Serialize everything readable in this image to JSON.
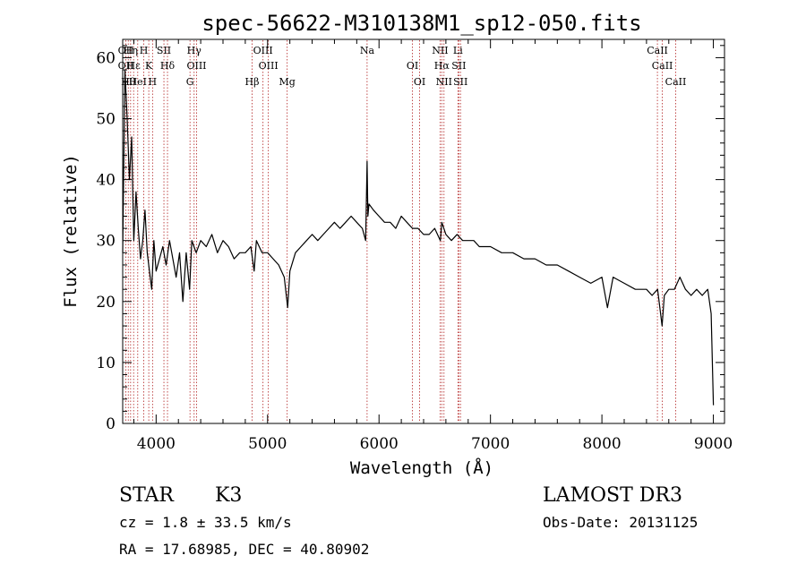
{
  "chart_data": {
    "type": "line",
    "title": "spec-56622-M310138M1_sp12-050.fits",
    "xlabel": "Wavelength (Å)",
    "ylabel": "Flux (relative)",
    "xlim": [
      3700,
      9100
    ],
    "ylim": [
      0,
      63
    ],
    "xticks": [
      4000,
      5000,
      6000,
      7000,
      8000,
      9000
    ],
    "yticks": [
      0,
      10,
      20,
      30,
      40,
      50,
      60
    ],
    "line_color": "#000000",
    "marker_color": "#b22222",
    "series": [
      {
        "name": "flux",
        "x": [
          3700,
          3720,
          3740,
          3760,
          3780,
          3800,
          3820,
          3840,
          3860,
          3880,
          3900,
          3920,
          3940,
          3960,
          3980,
          4000,
          4030,
          4060,
          4090,
          4120,
          4150,
          4180,
          4210,
          4240,
          4270,
          4300,
          4320,
          4340,
          4360,
          4400,
          4450,
          4500,
          4550,
          4600,
          4650,
          4700,
          4750,
          4800,
          4850,
          4880,
          4900,
          4950,
          5000,
          5050,
          5100,
          5150,
          5180,
          5200,
          5250,
          5300,
          5350,
          5400,
          5450,
          5500,
          5550,
          5600,
          5650,
          5700,
          5750,
          5800,
          5850,
          5880,
          5893,
          5900,
          5910,
          5950,
          6000,
          6050,
          6100,
          6150,
          6200,
          6250,
          6300,
          6350,
          6400,
          6450,
          6500,
          6550,
          6563,
          6600,
          6650,
          6700,
          6750,
          6800,
          6850,
          6900,
          6950,
          7000,
          7100,
          7200,
          7300,
          7400,
          7500,
          7600,
          7700,
          7800,
          7900,
          8000,
          8050,
          8100,
          8200,
          8300,
          8400,
          8450,
          8500,
          8540,
          8560,
          8600,
          8650,
          8700,
          8750,
          8800,
          8850,
          8900,
          8950,
          8980,
          9000
        ],
        "y": [
          28,
          58,
          50,
          40,
          47,
          30,
          38,
          32,
          27,
          30,
          35,
          28,
          25,
          22,
          30,
          25,
          27,
          29,
          26,
          30,
          27,
          24,
          28,
          20,
          28,
          22,
          30,
          29,
          28,
          30,
          29,
          31,
          28,
          30,
          29,
          27,
          28,
          28,
          29,
          25,
          30,
          28,
          28,
          27,
          26,
          24,
          19,
          25,
          28,
          29,
          30,
          31,
          30,
          31,
          32,
          33,
          32,
          33,
          34,
          33,
          32,
          30,
          43,
          34,
          36,
          35,
          34,
          33,
          33,
          32,
          34,
          33,
          32,
          32,
          31,
          31,
          32,
          30,
          33,
          31,
          30,
          31,
          30,
          30,
          30,
          29,
          29,
          29,
          28,
          28,
          27,
          27,
          26,
          26,
          25,
          24,
          23,
          24,
          19,
          24,
          23,
          22,
          22,
          21,
          22,
          16,
          21,
          22,
          22,
          24,
          22,
          21,
          22,
          21,
          22,
          18,
          3
        ]
      }
    ],
    "line_markers": [
      {
        "x": 3728,
        "labels": [
          "OII",
          "OII"
        ]
      },
      {
        "x": 3750,
        "labels": [
          "Hθ"
        ]
      },
      {
        "x": 3771,
        "labels": [
          "Hη"
        ]
      },
      {
        "x": 3798,
        "labels": [
          "Hε"
        ]
      },
      {
        "x": 3835,
        "labels": [
          "HeI"
        ]
      },
      {
        "x": 3889,
        "labels": [
          "H"
        ]
      },
      {
        "x": 3934,
        "labels": [
          "K"
        ]
      },
      {
        "x": 3968,
        "labels": [
          "H"
        ]
      },
      {
        "x": 4070,
        "labels": [
          "SII"
        ]
      },
      {
        "x": 4102,
        "labels": [
          "Hδ"
        ]
      },
      {
        "x": 4304,
        "labels": [
          "G"
        ]
      },
      {
        "x": 4341,
        "labels": [
          "Hγ"
        ]
      },
      {
        "x": 4363,
        "labels": [
          "OIII"
        ]
      },
      {
        "x": 4861,
        "labels": [
          "Hβ"
        ]
      },
      {
        "x": 4959,
        "labels": [
          "OIII"
        ]
      },
      {
        "x": 5007,
        "labels": [
          "OIII"
        ]
      },
      {
        "x": 5176,
        "labels": [
          "Mg"
        ]
      },
      {
        "x": 5893,
        "labels": [
          "Na"
        ]
      },
      {
        "x": 6300,
        "labels": [
          "OI"
        ]
      },
      {
        "x": 6364,
        "labels": [
          "OI"
        ]
      },
      {
        "x": 6548,
        "labels": [
          "NII"
        ]
      },
      {
        "x": 6563,
        "labels": [
          "Hα"
        ]
      },
      {
        "x": 6583,
        "labels": [
          "NII"
        ]
      },
      {
        "x": 6708,
        "labels": [
          "Li"
        ]
      },
      {
        "x": 6716,
        "labels": [
          "SII"
        ]
      },
      {
        "x": 6731,
        "labels": [
          "SII"
        ]
      },
      {
        "x": 8498,
        "labels": [
          "CaII"
        ]
      },
      {
        "x": 8542,
        "labels": [
          "CaII"
        ]
      },
      {
        "x": 8662,
        "labels": [
          "CaII"
        ]
      }
    ]
  },
  "info": {
    "class_label": "STAR",
    "subclass_label": "K3",
    "survey": "LAMOST DR3",
    "redshift": "cz =  1.8 ± 33.5 km/s",
    "obs_date": "Obs-Date: 20131125",
    "coords": "RA =  17.68985, DEC =  40.80902"
  }
}
